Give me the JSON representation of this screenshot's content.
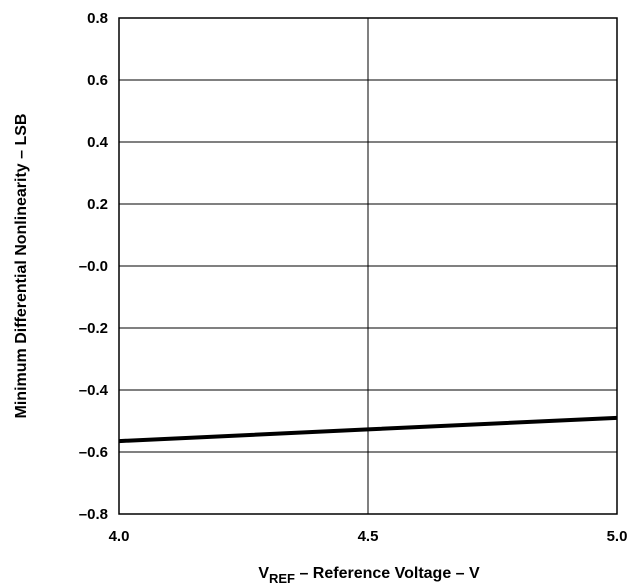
{
  "chart_data": {
    "type": "line",
    "title": "",
    "xlabel": {
      "main": "V",
      "subscript": "REF",
      "rest": " – Reference Voltage – V"
    },
    "ylabel": "Minimum Differential Nonlinearity – LSB",
    "xlim": [
      4.0,
      5.0
    ],
    "ylim": [
      -0.8,
      0.8
    ],
    "x_ticks": [
      4.0,
      4.5,
      5.0
    ],
    "x_tick_labels": [
      "4.0",
      "4.5",
      "5.0"
    ],
    "y_ticks": [
      0.8,
      0.6,
      0.4,
      0.2,
      0.0,
      -0.2,
      -0.4,
      -0.6,
      -0.8
    ],
    "y_tick_labels": [
      "0.8",
      "0.6",
      "0.4",
      "0.2",
      "–0.0",
      "–0.2",
      "–0.4",
      "–0.6",
      "–0.8"
    ],
    "grid": true,
    "legend": "none",
    "series": [
      {
        "x": [
          4.0,
          4.5,
          5.0
        ],
        "y": [
          -0.565,
          -0.527,
          -0.49
        ],
        "color": "#000000"
      }
    ]
  }
}
